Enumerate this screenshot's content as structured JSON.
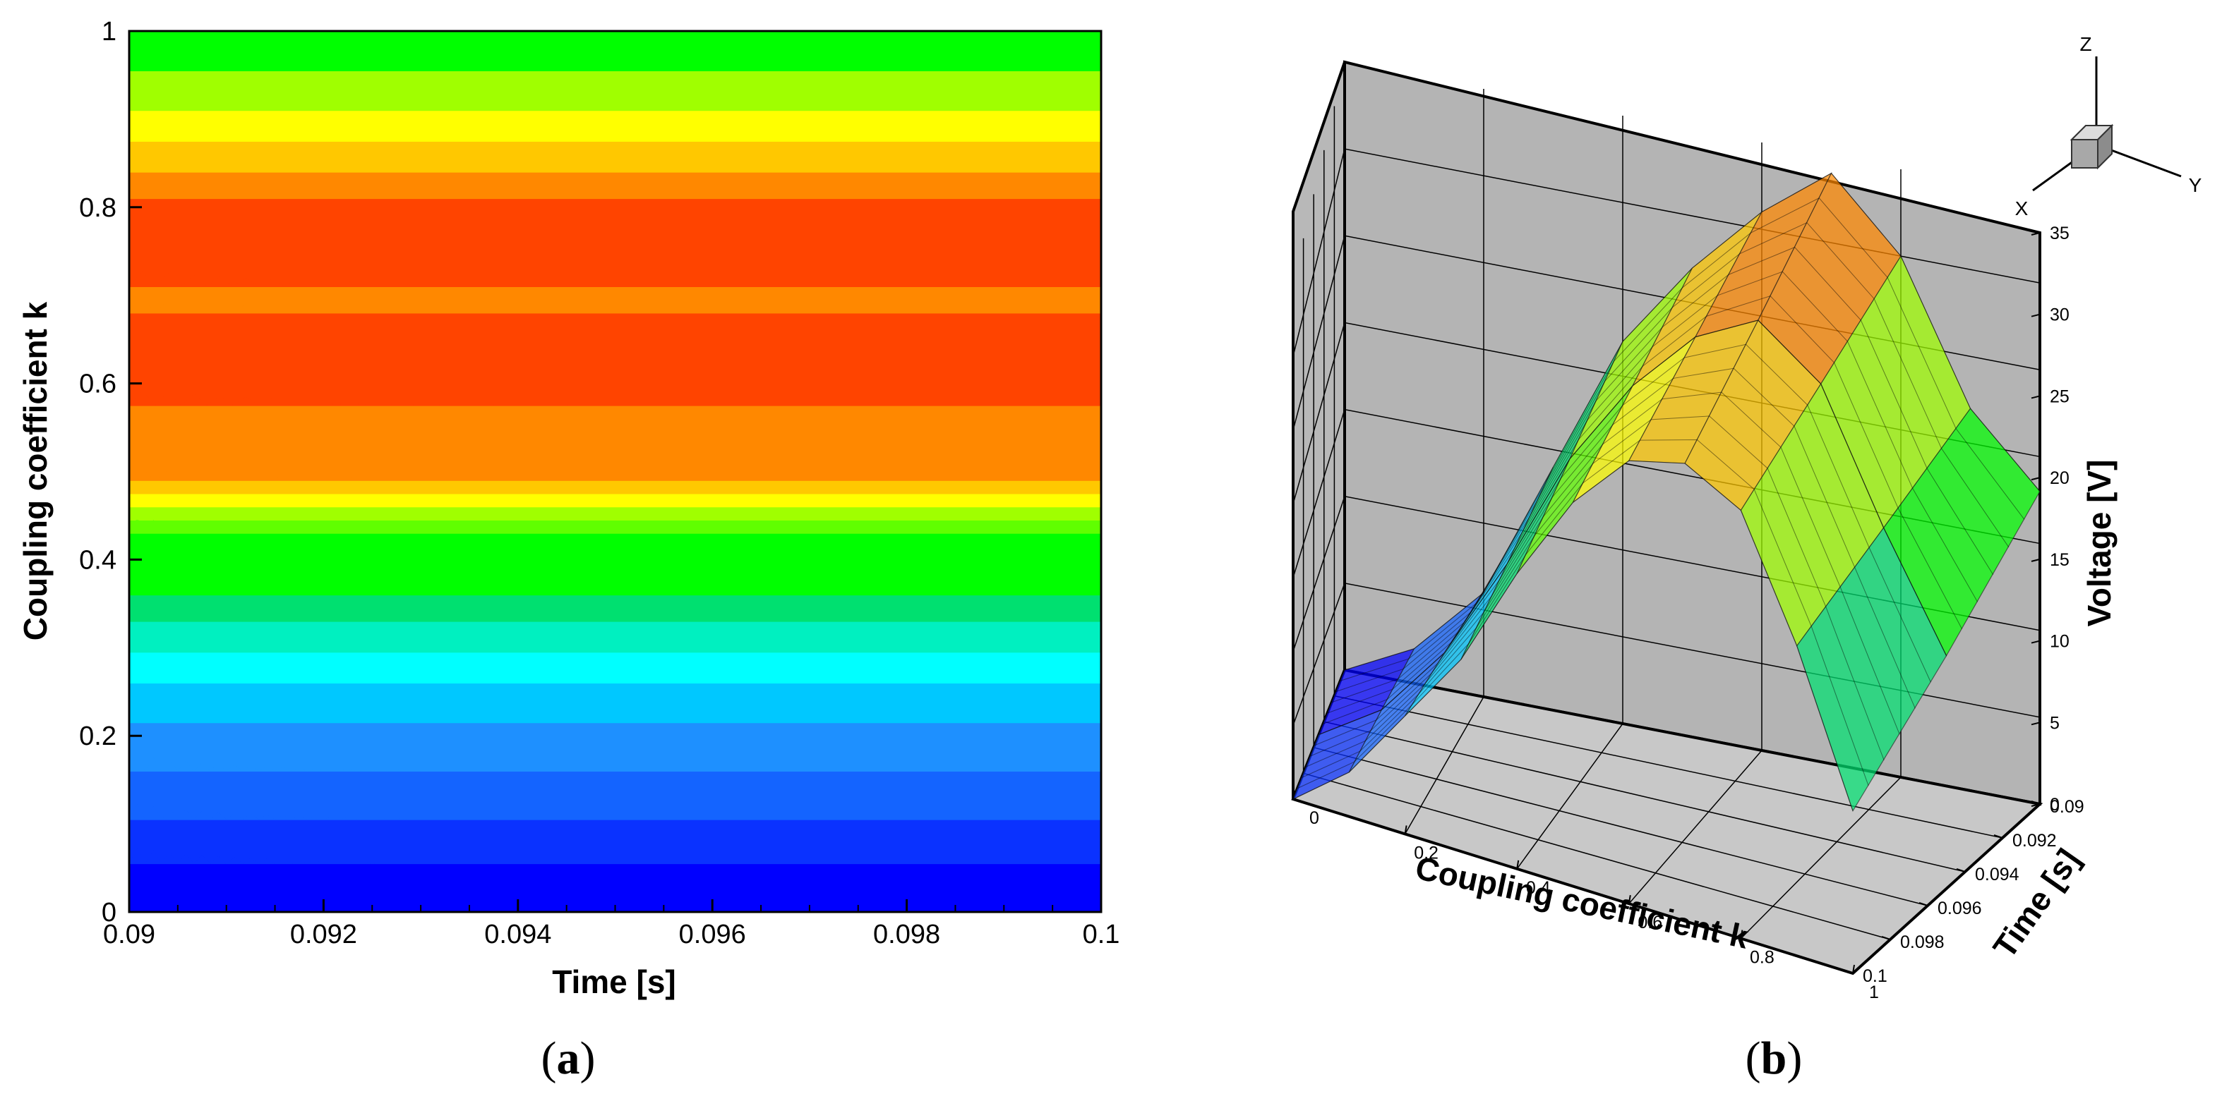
{
  "panels": {
    "a": {
      "label_open": "(",
      "label_letter": "a",
      "label_close": ")"
    },
    "b": {
      "label_open": "(",
      "label_letter": "b",
      "label_close": ")"
    }
  },
  "colors": {
    "levels": [
      "#0000ff",
      "#0a32ff",
      "#1464ff",
      "#1e90ff",
      "#00c8ff",
      "#00ffff",
      "#00f0c0",
      "#00e070",
      "#00ff00",
      "#60ff00",
      "#a0ff00",
      "#ffff00",
      "#ffc800",
      "#ff8800",
      "#ff4400"
    ],
    "plane_fill": "#b4b4b4",
    "floor_fill": "#c8c8c8"
  },
  "chart_data": [
    {
      "type": "heatmap",
      "title": "",
      "xlabel": "Time [s]",
      "ylabel": "Coupling coefficient k",
      "xlim": [
        0.09,
        0.1
      ],
      "ylim": [
        0,
        1
      ],
      "xticks": [
        "0.09",
        "0.092",
        "0.094",
        "0.096",
        "0.098",
        "0.1"
      ],
      "yticks": [
        "0",
        "0.2",
        "0.4",
        "0.6",
        "0.8",
        "1"
      ],
      "bands": [
        {
          "k_from": 0.0,
          "k_to": 0.055,
          "level": 0
        },
        {
          "k_from": 0.055,
          "k_to": 0.105,
          "level": 1
        },
        {
          "k_from": 0.105,
          "k_to": 0.16,
          "level": 2
        },
        {
          "k_from": 0.16,
          "k_to": 0.215,
          "level": 3
        },
        {
          "k_from": 0.215,
          "k_to": 0.26,
          "level": 4
        },
        {
          "k_from": 0.26,
          "k_to": 0.295,
          "level": 5
        },
        {
          "k_from": 0.295,
          "k_to": 0.33,
          "level": 6
        },
        {
          "k_from": 0.33,
          "k_to": 0.36,
          "level": 7
        },
        {
          "k_from": 0.36,
          "k_to": 0.43,
          "level": 8
        },
        {
          "k_from": 0.43,
          "k_to": 0.445,
          "level": 9
        },
        {
          "k_from": 0.445,
          "k_to": 0.46,
          "level": 10
        },
        {
          "k_from": 0.46,
          "k_to": 0.475,
          "level": 11
        },
        {
          "k_from": 0.475,
          "k_to": 0.49,
          "level": 12
        },
        {
          "k_from": 0.49,
          "k_to": 0.575,
          "level": 13
        },
        {
          "k_from": 0.575,
          "k_to": 0.68,
          "level": 14
        },
        {
          "k_from": 0.68,
          "k_to": 0.71,
          "level": 13
        },
        {
          "k_from": 0.71,
          "k_to": 0.81,
          "level": 14
        },
        {
          "k_from": 0.81,
          "k_to": 0.84,
          "level": 13
        },
        {
          "k_from": 0.84,
          "k_to": 0.875,
          "level": 12
        },
        {
          "k_from": 0.875,
          "k_to": 0.91,
          "level": 11
        },
        {
          "k_from": 0.91,
          "k_to": 0.955,
          "level": 10
        },
        {
          "k_from": 0.955,
          "k_to": 1.0,
          "level": 8
        }
      ]
    },
    {
      "type": "surface3d",
      "title": "",
      "xlabel": "Coupling coefficient k",
      "ylabel": "Time [s]",
      "zlabel": "Voltage [V]",
      "xlim": [
        0,
        1
      ],
      "ylim": [
        0.09,
        0.1
      ],
      "zlim": [
        0,
        35
      ],
      "xticks": [
        "0",
        "0.2",
        "0.4",
        "0.6",
        "0.8",
        "1"
      ],
      "yticks": [
        "0.09",
        "0.092",
        "0.094",
        "0.096",
        "0.098",
        "0.1"
      ],
      "zticks": [
        "0",
        "5",
        "10",
        "15",
        "20",
        "25",
        "30",
        "35"
      ],
      "axes_triad": {
        "x": "X",
        "y": "Y",
        "z": "Z"
      },
      "k_values": [
        0,
        0.1,
        0.2,
        0.3,
        0.4,
        0.5,
        0.6,
        0.7,
        0.8,
        0.9,
        1.0
      ],
      "voltage_front": [
        0,
        3,
        8,
        13,
        20,
        26,
        30,
        31,
        29,
        21,
        11
      ],
      "voltage_back": [
        0,
        2,
        6,
        14,
        22,
        27,
        31,
        34,
        30,
        22,
        18
      ]
    }
  ]
}
